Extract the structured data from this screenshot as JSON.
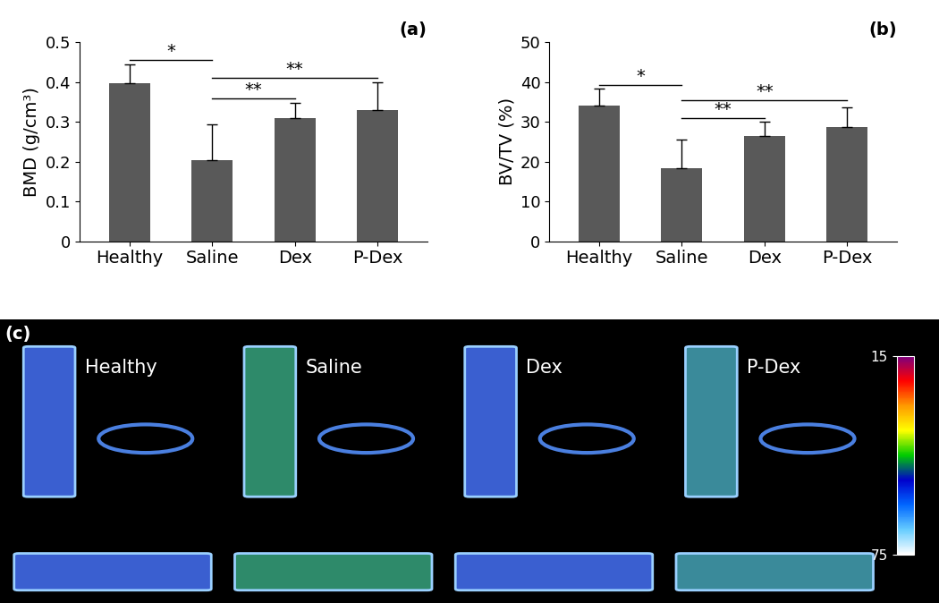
{
  "chart_data": [
    {
      "type": "bar",
      "title": "(a)",
      "y_label": "BMD (g/cm³)",
      "categories": [
        "Healthy",
        "Saline",
        "Dex",
        "P-Dex"
      ],
      "values": [
        0.397,
        0.203,
        0.31,
        0.33
      ],
      "errors": [
        0.048,
        0.09,
        0.038,
        0.07
      ],
      "color": "#595959",
      "grid": false,
      "ylim": [
        0,
        0.5
      ],
      "yticks": [
        0,
        0.1,
        0.2,
        0.3,
        0.4,
        0.5
      ],
      "annotations": [
        {
          "text": "*",
          "between": [
            "Healthy",
            "Saline"
          ]
        },
        {
          "text": "**",
          "between": [
            "Saline",
            "Dex"
          ]
        },
        {
          "text": "**",
          "between": [
            "Saline",
            "P-Dex"
          ]
        }
      ]
    },
    {
      "type": "bar",
      "title": "(b)",
      "y_label": "BV/TV (%)",
      "categories": [
        "Healthy",
        "Saline",
        "Dex",
        "P-Dex"
      ],
      "values": [
        34.0,
        18.3,
        26.5,
        28.7
      ],
      "errors": [
        4.3,
        7.2,
        3.5,
        5.0
      ],
      "color": "#595959",
      "grid": false,
      "ylim": [
        0,
        50
      ],
      "yticks": [
        0,
        10,
        20,
        30,
        40,
        50
      ],
      "annotations": [
        {
          "text": "*",
          "between": [
            "Healthy",
            "Saline"
          ]
        },
        {
          "text": "**",
          "between": [
            "Saline",
            "Dex"
          ]
        },
        {
          "text": "**",
          "between": [
            "Saline",
            "P-Dex"
          ]
        }
      ]
    }
  ],
  "image_panel": {
    "label": "(c)",
    "labels": [
      "Healthy",
      "Saline",
      "Dex",
      "P-Dex"
    ],
    "colorbar": {
      "range": [
        15,
        75
      ],
      "ticks": [
        15,
        75
      ]
    }
  }
}
